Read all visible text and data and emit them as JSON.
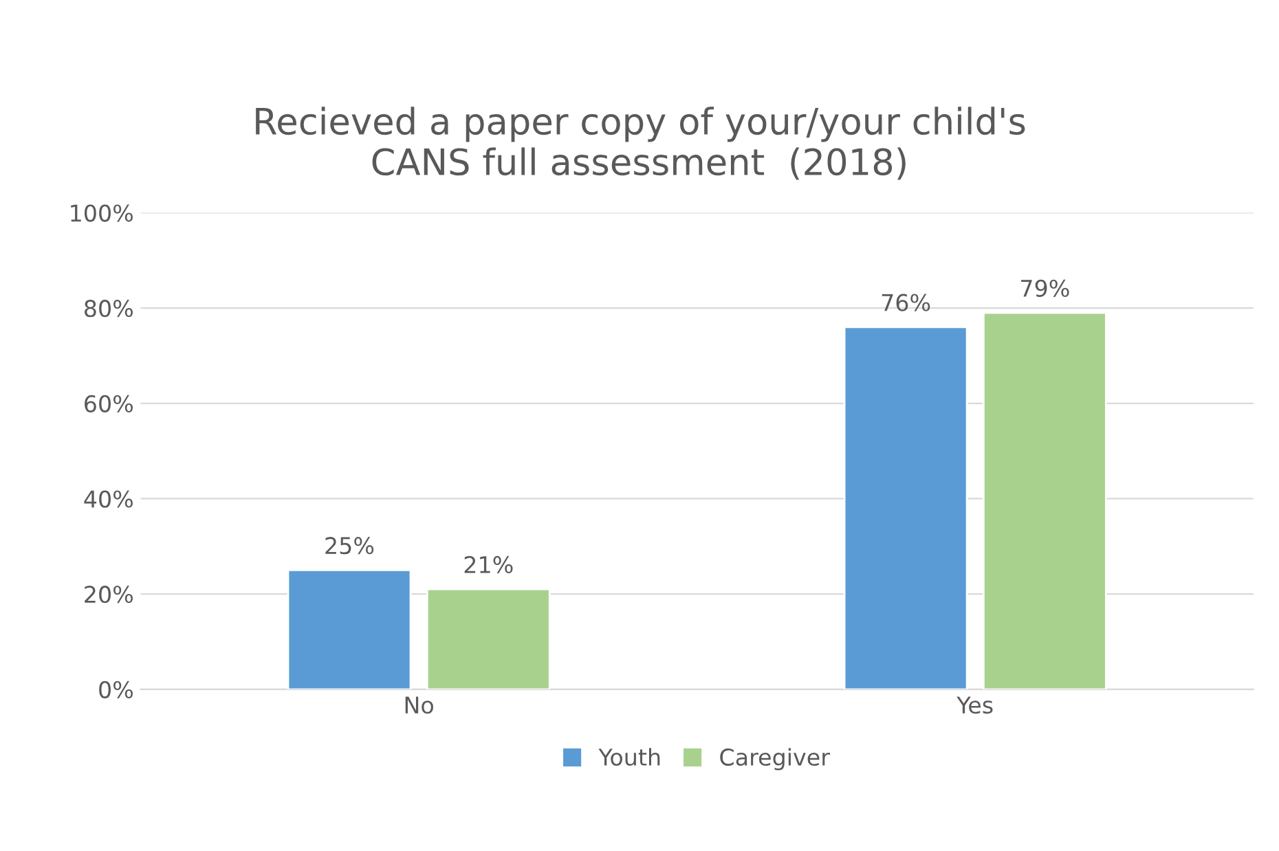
{
  "chart_data": {
    "type": "bar",
    "title": "Recieved a paper copy of your/your child's\nCANS full assessment  (2018)",
    "categories": [
      "No",
      "Yes"
    ],
    "series": [
      {
        "name": "Youth",
        "color": "#5b9bd5",
        "values": [
          25,
          76
        ],
        "value_labels": [
          "25%",
          "76%"
        ]
      },
      {
        "name": "Caregiver",
        "color": "#a9d18e",
        "values": [
          21,
          79
        ],
        "value_labels": [
          "21%",
          "79%"
        ]
      }
    ],
    "ylim": [
      0,
      100
    ],
    "yticks": [
      {
        "value": 0,
        "label": "0%"
      },
      {
        "value": 20,
        "label": "20%"
      },
      {
        "value": 40,
        "label": "40%"
      },
      {
        "value": 60,
        "label": "60%"
      },
      {
        "value": 80,
        "label": "80%"
      },
      {
        "value": 100,
        "label": "100%"
      }
    ],
    "grid": "y",
    "legend": "bottom"
  }
}
